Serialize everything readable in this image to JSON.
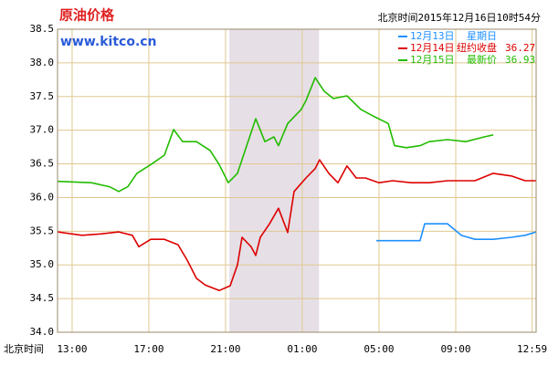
{
  "chart_data": {
    "type": "line",
    "title": "原油价格",
    "subtitle": "www.kitco.cn",
    "timestamp": "北京时间2015年12月16日10时54分",
    "x_label": "北京时间",
    "xlim": [
      12.24,
      37.19
    ],
    "xticks": [
      {
        "value": 13,
        "label": "13:00"
      },
      {
        "value": 17,
        "label": "17:00"
      },
      {
        "value": 21,
        "label": "21:00"
      },
      {
        "value": 25,
        "label": "01:00"
      },
      {
        "value": 29,
        "label": "05:00"
      },
      {
        "value": 33,
        "label": "09:00"
      },
      {
        "value": 36.98,
        "label": "12:59"
      }
    ],
    "ylim": [
      34,
      38.5
    ],
    "yticks": [
      {
        "value": 34,
        "label": "34.0"
      },
      34.5,
      {
        "value": 35,
        "label": "35.0"
      },
      35.5,
      {
        "value": 36,
        "label": "36.0"
      },
      36.5,
      {
        "value": 37,
        "label": "37.0"
      },
      37.5,
      {
        "value": 38,
        "label": "38.0"
      },
      38.5
    ],
    "grid": true,
    "shaded_span": [
      21.2,
      25.87
    ],
    "series": [
      {
        "name": "12月13日",
        "color": "#1e90ff",
        "legend_note": "星期日",
        "x": [
          28.86,
          31.14,
          31.38,
          32.57,
          33.29,
          34.0,
          34.95,
          35.9,
          36.62,
          37.19
        ],
        "values": [
          35.36,
          35.36,
          35.61,
          35.61,
          35.44,
          35.38,
          35.38,
          35.41,
          35.44,
          35.49
        ]
      },
      {
        "name": "12月14日",
        "color": "#dd0000",
        "legend_note": "纽约收盘",
        "legend_value": 36.27,
        "x": [
          12.24,
          13.52,
          14.48,
          15.43,
          16.14,
          16.48,
          17.1,
          17.81,
          18.52,
          19.0,
          19.48,
          19.95,
          20.67,
          21.24,
          21.62,
          21.86,
          22.33,
          22.57,
          22.81,
          23.29,
          23.76,
          24.24,
          24.57,
          25.19,
          25.67,
          25.9,
          26.38,
          26.86,
          27.33,
          27.81,
          28.29,
          29.0,
          29.71,
          30.67,
          31.62,
          32.57,
          34.0,
          34.95,
          35.9,
          36.62,
          37.19
        ],
        "values": [
          35.49,
          35.44,
          35.46,
          35.49,
          35.44,
          35.27,
          35.38,
          35.38,
          35.3,
          35.07,
          34.8,
          34.7,
          34.62,
          34.69,
          35.0,
          35.41,
          35.27,
          35.14,
          35.41,
          35.61,
          35.84,
          35.48,
          36.09,
          36.29,
          36.43,
          36.56,
          36.36,
          36.22,
          36.47,
          36.29,
          36.29,
          36.22,
          36.25,
          36.22,
          36.22,
          36.25,
          36.25,
          36.36,
          36.32,
          36.25,
          36.25
        ]
      },
      {
        "name": "12月15日",
        "color": "#22bb00",
        "legend_note": "最新价",
        "legend_value": 36.93,
        "x": [
          12.24,
          14.0,
          14.95,
          15.43,
          15.9,
          16.38,
          17.1,
          17.81,
          18.29,
          18.76,
          19.48,
          20.19,
          20.67,
          21.14,
          21.62,
          22.1,
          22.57,
          23.05,
          23.52,
          23.76,
          24.24,
          24.95,
          25.19,
          25.67,
          26.14,
          26.62,
          27.33,
          28.05,
          28.76,
          29.48,
          29.81,
          30.43,
          31.14,
          31.62,
          32.57,
          33.52,
          34.48,
          34.95
        ],
        "values": [
          36.24,
          36.22,
          36.16,
          36.09,
          36.16,
          36.36,
          36.49,
          36.63,
          37.01,
          36.83,
          36.83,
          36.7,
          36.49,
          36.22,
          36.36,
          36.77,
          37.17,
          36.83,
          36.9,
          36.77,
          37.1,
          37.31,
          37.44,
          37.78,
          37.58,
          37.47,
          37.51,
          37.31,
          37.2,
          37.1,
          36.77,
          36.74,
          36.77,
          36.83,
          36.86,
          36.83,
          36.9,
          36.93
        ]
      }
    ]
  }
}
